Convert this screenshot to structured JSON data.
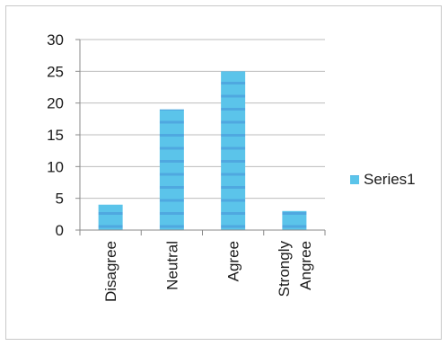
{
  "chart_data": {
    "type": "bar",
    "categories": [
      [
        "Disagree"
      ],
      [
        "Neutral"
      ],
      [
        "Agree"
      ],
      [
        "Strongly",
        "Angree"
      ]
    ],
    "series": [
      {
        "name": "Series1",
        "values": [
          4,
          19,
          25,
          3
        ],
        "color": "#5bc4ea"
      }
    ],
    "ylim": [
      0,
      30
    ],
    "yticks": [
      0,
      5,
      10,
      15,
      20,
      25,
      30
    ],
    "grid": true,
    "legend": "right",
    "title": "",
    "xlabel": "",
    "ylabel": ""
  }
}
